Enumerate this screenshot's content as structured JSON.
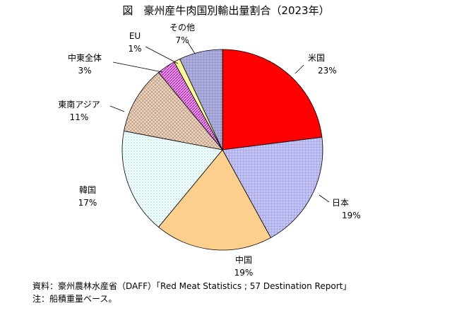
{
  "chart_data": {
    "type": "pie",
    "title": "図　豪州産牛肉国別輸出量割合（2023年）",
    "slices": [
      {
        "label": "米国",
        "pct_label": "23%",
        "value": 23,
        "color": "#ff0000",
        "pattern": "solid"
      },
      {
        "label": "日本",
        "pct_label": "19%",
        "value": 19,
        "color": "#b8b8f0",
        "pattern": "grid"
      },
      {
        "label": "中国",
        "pct_label": "19%",
        "value": 19,
        "color": "#fcd08c",
        "pattern": "solid"
      },
      {
        "label": "韓国",
        "pct_label": "17%",
        "value": 17,
        "color": "#e6f7f7",
        "pattern": "dots"
      },
      {
        "label": "東南アジア",
        "pct_label": "11%",
        "value": 11,
        "color": "#e0c8b4",
        "pattern": "cross"
      },
      {
        "label": "中東全体",
        "pct_label": "3%",
        "value": 3,
        "color": "#e070e0",
        "pattern": "diagonal"
      },
      {
        "label": "EU",
        "pct_label": "1%",
        "value": 1,
        "color": "#ffff99",
        "pattern": "solid"
      },
      {
        "label": "その他",
        "pct_label": "7%",
        "value": 7,
        "color": "#a8a8d8",
        "pattern": "grid"
      }
    ]
  },
  "notes": {
    "source": "資料：豪州農林水産省（DAFF）「Red Meat Statistics ; 57 Destination Report」",
    "note": "注：船積重量ベース。"
  }
}
